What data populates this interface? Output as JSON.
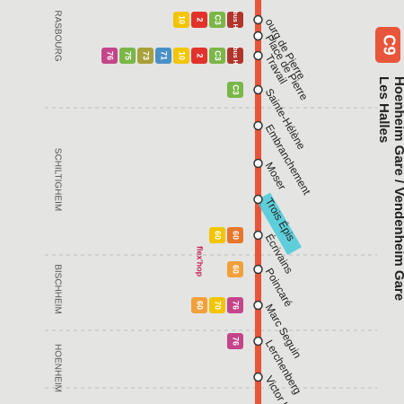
{
  "header": {
    "line": "C9",
    "from": "Les Halles",
    "to": "Hoenheim Gare / Vendenheim Gare"
  },
  "districts": [
    "RASBOURG",
    "SCHILTIGHEIM",
    "BISCHHEIM",
    "HOENHEIM"
  ],
  "stops": [
    {
      "name": "ourg de Pierre",
      "connections": [
        {
          "label": "10",
          "color": "#f2c500"
        },
        {
          "label": "2",
          "color": "#e2322b"
        },
        {
          "label": "C3",
          "color": "#7ab648"
        },
        {
          "label": "bus H",
          "color": "#b0352c"
        }
      ]
    },
    {
      "name": "Place de Pierre",
      "connections": []
    },
    {
      "name": "Travail",
      "connections": [
        {
          "label": "76",
          "color": "#c4458a"
        },
        {
          "label": "75",
          "color": "#7ab648"
        },
        {
          "label": "73",
          "color": "#a8a03a"
        },
        {
          "label": "71",
          "color": "#4a90c8"
        },
        {
          "label": "10",
          "color": "#f2c500"
        },
        {
          "label": "2",
          "color": "#e2322b"
        },
        {
          "label": "C3",
          "color": "#7ab648"
        },
        {
          "label": "bus H",
          "color": "#b0352c"
        }
      ]
    },
    {
      "name": "Sainte-Hélène",
      "connections": [
        {
          "label": "C3",
          "color": "#7ab648"
        }
      ]
    },
    {
      "name": "Embranchement",
      "connections": []
    },
    {
      "name": "Moser",
      "connections": []
    },
    {
      "name": "Trois Épis",
      "connections": []
    },
    {
      "name": "Écrivains",
      "connections": [
        {
          "label": "60",
          "color": "#f2c500"
        },
        {
          "label": "60",
          "color": "#e8762c"
        }
      ],
      "extra": "flex'hop"
    },
    {
      "name": "Poincaré",
      "connections": [
        {
          "label": "60",
          "color": "#f2a03a"
        }
      ]
    },
    {
      "name": "Marc Seguin",
      "connections": [
        {
          "label": "60",
          "color": "#f2a03a"
        },
        {
          "label": "70",
          "color": "#f2c500"
        },
        {
          "label": "76",
          "color": "#c4458a"
        }
      ]
    },
    {
      "name": "Lerchenberg",
      "connections": [
        {
          "label": "76",
          "color": "#c4458a"
        }
      ]
    },
    {
      "name": "Victor Hu",
      "connections": []
    }
  ]
}
